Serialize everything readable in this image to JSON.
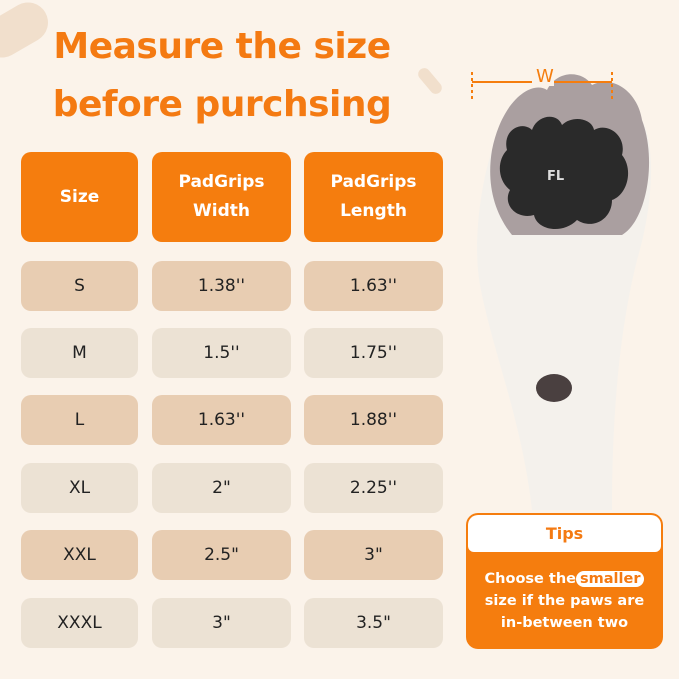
{
  "title": {
    "line1": "Measure the size",
    "line2": "before purchsing"
  },
  "table": {
    "headers": [
      "Size",
      "PadGrips Width",
      "PadGrips Length"
    ],
    "rows": [
      [
        "S",
        "1.38''",
        "1.63''"
      ],
      [
        "M",
        "1.5''",
        "1.75''"
      ],
      [
        "L",
        "1.63''",
        "1.88''"
      ],
      [
        "XL",
        "2\"",
        "2.25''"
      ],
      [
        "XXL",
        "2.5\"",
        "3\""
      ],
      [
        "XXXL",
        "3\"",
        "3.5\""
      ]
    ]
  },
  "measure_label": "W",
  "logo": "FL",
  "tips": {
    "title": "Tips",
    "text_before": "Choose the",
    "highlight": "smaller",
    "text_after": "size if the paws are in-between two"
  },
  "colors": {
    "accent": "#f57d0e",
    "background": "#fbf3ea",
    "row_odd": "#e8cdb2",
    "row_even": "#ece2d4"
  }
}
